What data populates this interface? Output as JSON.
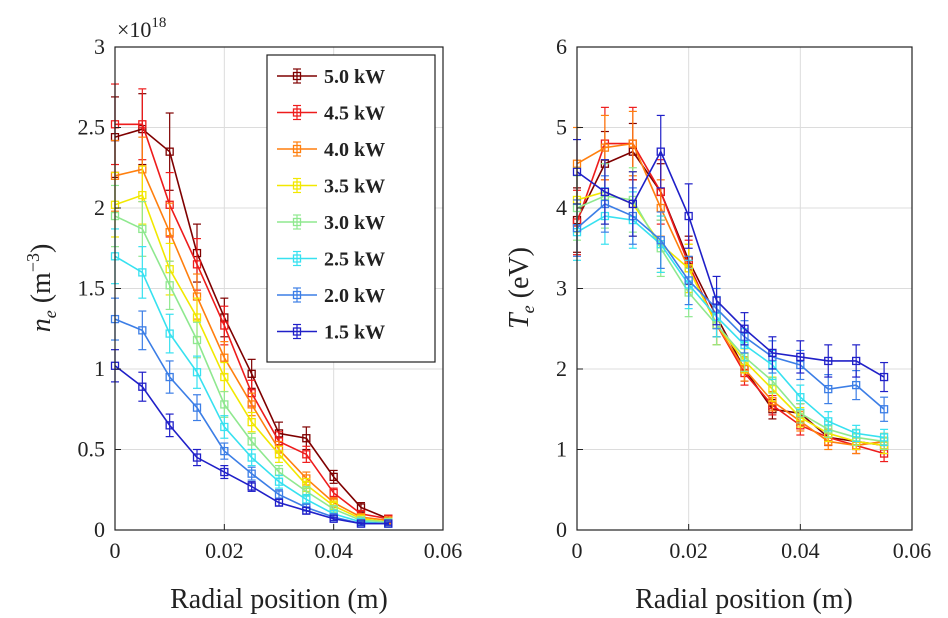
{
  "chart_data": [
    {
      "type": "line",
      "xlabel": "Radial position (m)",
      "ylabel": "n_e (m^-3)",
      "y_multiplier": "×10^18",
      "xlim": [
        0,
        0.06
      ],
      "ylim": [
        0,
        3
      ],
      "xticks": [
        "0",
        "0.02",
        "0.04",
        "0.06"
      ],
      "yticks": [
        "0",
        "0.5",
        "1",
        "1.5",
        "2",
        "2.5",
        "3"
      ],
      "grid": true,
      "legend_position": "top-right",
      "x": [
        0,
        0.005,
        0.01,
        0.015,
        0.02,
        0.025,
        0.03,
        0.035,
        0.04,
        0.045,
        0.05
      ],
      "series": [
        {
          "name": "5.0 kW",
          "color": "#7f0000",
          "values": [
            2.44,
            2.49,
            2.35,
            1.72,
            1.32,
            0.97,
            0.6,
            0.57,
            0.33,
            0.14,
            0.07
          ],
          "errors": [
            0.25,
            0.22,
            0.24,
            0.18,
            0.12,
            0.09,
            0.07,
            0.07,
            0.04,
            0.03,
            0.02
          ]
        },
        {
          "name": "4.5 kW",
          "color": "#ee1c1c",
          "values": [
            2.52,
            2.52,
            2.02,
            1.65,
            1.27,
            0.85,
            0.55,
            0.47,
            0.23,
            0.1,
            0.07
          ],
          "errors": [
            0.25,
            0.22,
            0.2,
            0.16,
            0.12,
            0.08,
            0.06,
            0.05,
            0.03,
            0.02,
            0.02
          ]
        },
        {
          "name": "4.0 kW",
          "color": "#ff7f0e",
          "values": [
            2.2,
            2.24,
            1.85,
            1.45,
            1.07,
            0.78,
            0.5,
            0.32,
            0.17,
            0.08,
            0.06
          ],
          "errors": [
            0.22,
            0.2,
            0.18,
            0.14,
            0.1,
            0.07,
            0.05,
            0.04,
            0.03,
            0.02,
            0.02
          ]
        },
        {
          "name": "3.5 kW",
          "color": "#f2e800",
          "values": [
            2.02,
            2.08,
            1.62,
            1.32,
            0.95,
            0.67,
            0.47,
            0.28,
            0.15,
            0.07,
            0.05
          ],
          "errors": [
            0.2,
            0.18,
            0.16,
            0.12,
            0.09,
            0.06,
            0.05,
            0.04,
            0.03,
            0.02,
            0.02
          ]
        },
        {
          "name": "3.0 kW",
          "color": "#8fe88f",
          "values": [
            1.95,
            1.87,
            1.52,
            1.18,
            0.78,
            0.55,
            0.36,
            0.24,
            0.13,
            0.06,
            0.05
          ],
          "errors": [
            0.19,
            0.17,
            0.15,
            0.11,
            0.08,
            0.05,
            0.04,
            0.03,
            0.02,
            0.02,
            0.02
          ]
        },
        {
          "name": "2.5 kW",
          "color": "#37e1f0",
          "values": [
            1.7,
            1.6,
            1.22,
            0.98,
            0.64,
            0.45,
            0.3,
            0.19,
            0.1,
            0.05,
            0.04
          ],
          "errors": [
            0.17,
            0.16,
            0.12,
            0.1,
            0.07,
            0.05,
            0.04,
            0.03,
            0.02,
            0.01,
            0.01
          ]
        },
        {
          "name": "2.0 kW",
          "color": "#3c7ee6",
          "values": [
            1.31,
            1.24,
            0.95,
            0.76,
            0.49,
            0.35,
            0.22,
            0.14,
            0.08,
            0.04,
            0.04
          ],
          "errors": [
            0.13,
            0.12,
            0.1,
            0.08,
            0.05,
            0.04,
            0.03,
            0.02,
            0.02,
            0.01,
            0.01
          ]
        },
        {
          "name": "1.5 kW",
          "color": "#2020c8",
          "values": [
            1.02,
            0.89,
            0.65,
            0.45,
            0.36,
            0.27,
            0.17,
            0.12,
            0.07,
            0.04,
            0.04
          ],
          "errors": [
            0.1,
            0.09,
            0.07,
            0.05,
            0.04,
            0.03,
            0.02,
            0.02,
            0.01,
            0.01,
            0.01
          ]
        }
      ]
    },
    {
      "type": "line",
      "xlabel": "Radial position (m)",
      "ylabel": "T_e (eV)",
      "xlim": [
        0,
        0.06
      ],
      "ylim": [
        0,
        6
      ],
      "xticks": [
        "0",
        "0.02",
        "0.04",
        "0.06"
      ],
      "yticks": [
        "0",
        "1",
        "2",
        "3",
        "4",
        "5",
        "6"
      ],
      "grid": true,
      "x": [
        0,
        0.005,
        0.01,
        0.015,
        0.02,
        0.025,
        0.03,
        0.035,
        0.04,
        0.045,
        0.05,
        0.055
      ],
      "series": [
        {
          "name": "5.0 kW",
          "color": "#7f0000",
          "values": [
            3.85,
            4.55,
            4.7,
            4.2,
            3.35,
            2.65,
            2.0,
            1.5,
            1.45,
            1.15,
            1.1,
            1.05
          ],
          "errors": [
            0.4,
            0.4,
            0.35,
            0.35,
            0.3,
            0.25,
            0.15,
            0.12,
            0.12,
            0.1,
            0.1,
            0.1
          ]
        },
        {
          "name": "4.5 kW",
          "color": "#ee1c1c",
          "values": [
            3.82,
            4.8,
            4.8,
            4.2,
            3.3,
            2.55,
            1.95,
            1.55,
            1.3,
            1.15,
            1.05,
            0.95
          ],
          "errors": [
            0.4,
            0.45,
            0.45,
            0.4,
            0.3,
            0.25,
            0.15,
            0.12,
            0.12,
            0.1,
            0.1,
            0.1
          ]
        },
        {
          "name": "4.0 kW",
          "color": "#ff7f0e",
          "values": [
            4.55,
            4.75,
            4.8,
            4.0,
            3.25,
            2.55,
            2.0,
            1.6,
            1.35,
            1.1,
            1.05,
            1.1
          ],
          "errors": [
            0.45,
            0.4,
            0.4,
            0.35,
            0.3,
            0.25,
            0.15,
            0.12,
            0.12,
            0.1,
            0.1,
            0.1
          ]
        },
        {
          "name": "3.5 kW",
          "color": "#f2e800",
          "values": [
            4.1,
            4.2,
            4.05,
            3.55,
            3.25,
            2.55,
            2.1,
            1.75,
            1.4,
            1.2,
            1.1,
            1.05
          ],
          "errors": [
            0.4,
            0.4,
            0.4,
            0.35,
            0.3,
            0.25,
            0.15,
            0.15,
            0.12,
            0.1,
            0.1,
            0.1
          ]
        },
        {
          "name": "3.0 kW",
          "color": "#8fe88f",
          "values": [
            4.0,
            4.15,
            4.1,
            3.5,
            2.95,
            2.55,
            2.15,
            1.85,
            1.45,
            1.25,
            1.15,
            1.1
          ],
          "errors": [
            0.4,
            0.4,
            0.4,
            0.35,
            0.3,
            0.25,
            0.18,
            0.15,
            0.12,
            0.1,
            0.1,
            0.1
          ]
        },
        {
          "name": "2.5 kW",
          "color": "#37e1f0",
          "values": [
            3.7,
            3.9,
            3.85,
            3.55,
            3.05,
            2.65,
            2.3,
            2.05,
            1.65,
            1.35,
            1.2,
            1.15
          ],
          "errors": [
            0.35,
            0.35,
            0.35,
            0.35,
            0.3,
            0.25,
            0.2,
            0.18,
            0.15,
            0.12,
            0.1,
            0.1
          ]
        },
        {
          "name": "2.0 kW",
          "color": "#3c7ee6",
          "values": [
            3.75,
            4.05,
            3.9,
            3.6,
            3.1,
            2.75,
            2.4,
            2.15,
            2.05,
            1.75,
            1.8,
            1.5
          ],
          "errors": [
            0.35,
            0.35,
            0.35,
            0.35,
            0.3,
            0.25,
            0.2,
            0.2,
            0.18,
            0.18,
            0.18,
            0.15
          ]
        },
        {
          "name": "1.5 kW",
          "color": "#2020c8",
          "values": [
            4.45,
            4.2,
            4.05,
            4.7,
            3.9,
            2.85,
            2.5,
            2.2,
            2.15,
            2.1,
            2.1,
            1.9
          ],
          "errors": [
            0.4,
            0.4,
            0.4,
            0.45,
            0.4,
            0.3,
            0.2,
            0.2,
            0.2,
            0.2,
            0.2,
            0.18
          ]
        }
      ]
    }
  ]
}
